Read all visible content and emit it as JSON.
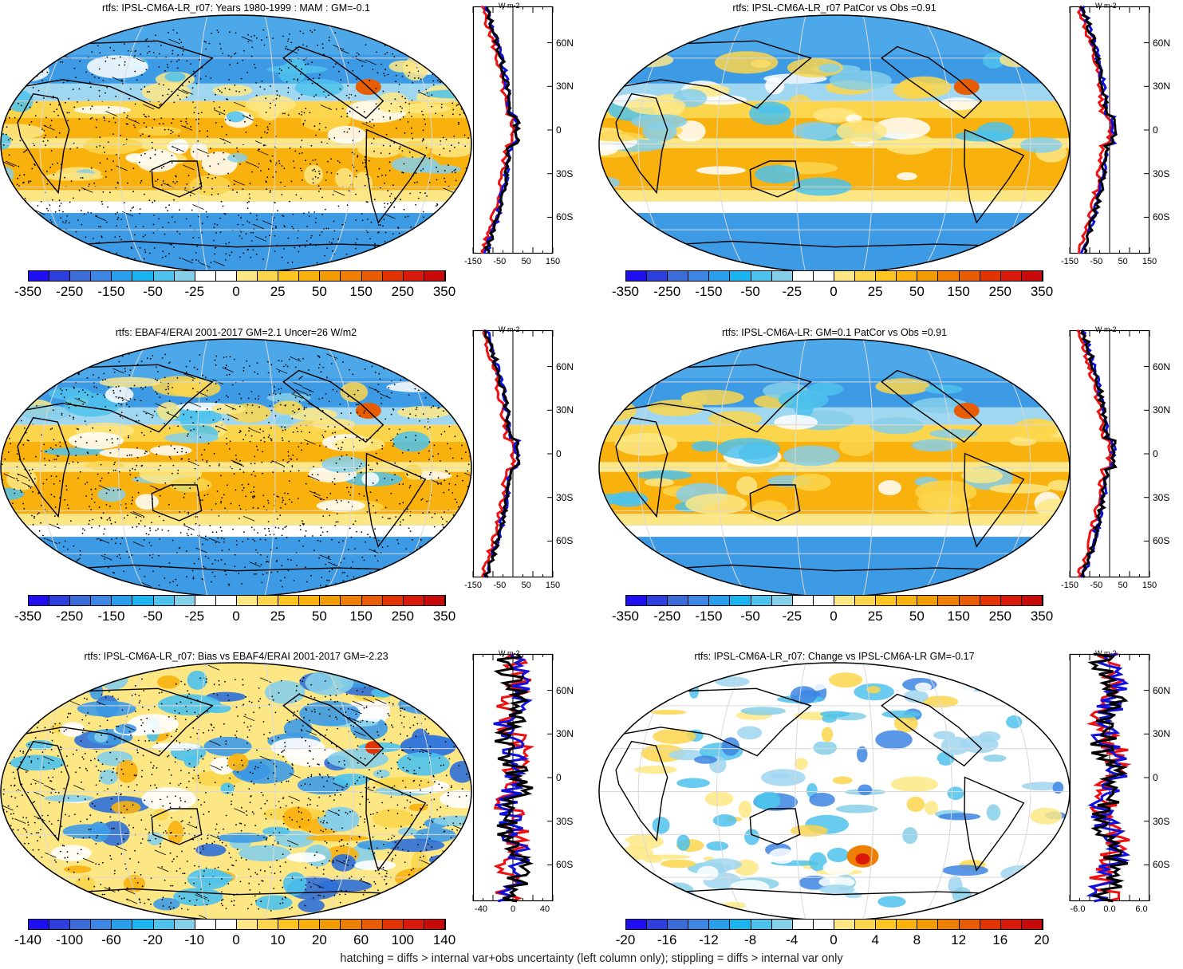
{
  "panels": [
    {
      "title": "rtfs: IPSL-CM6A-LR_r07: Years 1980-1999 : MAM : GM=-0.1",
      "field": "bright",
      "hatching": true,
      "colorbar_labels": [
        "-350",
        "-250",
        "-150",
        "-50",
        "-25",
        "0",
        "25",
        "50",
        "150",
        "250",
        "350"
      ],
      "profile_xticks": [
        "-150",
        "-50",
        "50",
        "150"
      ],
      "profile_xrange": [
        -150,
        150
      ],
      "profile_units": "W m-2",
      "profile_lat_labels": [
        "60N",
        "30N",
        "0",
        "30S",
        "60S"
      ]
    },
    {
      "title": "rtfs: IPSL-CM6A-LR_r07 PatCor vs Obs =0.91",
      "field": "bright",
      "hatching": false,
      "colorbar_labels": [
        "-350",
        "-250",
        "-150",
        "-50",
        "-25",
        "0",
        "25",
        "50",
        "150",
        "250",
        "350"
      ],
      "profile_xticks": [
        "-150",
        "-50",
        "50",
        "150"
      ],
      "profile_xrange": [
        -150,
        150
      ],
      "profile_units": "W m-2",
      "profile_lat_labels": [
        "60N",
        "30N",
        "0",
        "30S",
        "60S"
      ]
    },
    {
      "title": "rtfs: EBAF4/ERAI 2001-2017 GM=2.1 Uncer=26 W/m2",
      "field": "bright",
      "hatching": true,
      "colorbar_labels": [
        "-350",
        "-250",
        "-150",
        "-50",
        "-25",
        "0",
        "25",
        "50",
        "150",
        "250",
        "350"
      ],
      "profile_xticks": [
        "-150",
        "-50",
        "50",
        "150"
      ],
      "profile_xrange": [
        -150,
        150
      ],
      "profile_units": "W m-2",
      "profile_lat_labels": [
        "60N",
        "30N",
        "0",
        "30S",
        "60S"
      ]
    },
    {
      "title": "rtfs: IPSL-CM6A-LR: GM=0.1 PatCor vs Obs =0.91",
      "field": "bright",
      "hatching": false,
      "colorbar_labels": [
        "-350",
        "-250",
        "-150",
        "-50",
        "-25",
        "0",
        "25",
        "50",
        "150",
        "250",
        "350"
      ],
      "profile_xticks": [
        "-150",
        "-50",
        "50",
        "150"
      ],
      "profile_xrange": [
        -150,
        150
      ],
      "profile_units": "W m-2",
      "profile_lat_labels": [
        "60N",
        "30N",
        "0",
        "30S",
        "60S"
      ]
    },
    {
      "title": "rtfs: IPSL-CM6A-LR_r07: Bias vs EBAF4/ERAI 2001-2017 GM=-2.23",
      "field": "bias",
      "hatching": true,
      "colorbar_labels": [
        "-140",
        "-100",
        "-60",
        "-20",
        "-10",
        "0",
        "10",
        "20",
        "60",
        "100",
        "140"
      ],
      "profile_xticks": [
        "-40",
        "0",
        "40"
      ],
      "profile_xrange": [
        -50,
        50
      ],
      "profile_units": "W m-2",
      "profile_lat_labels": [
        "60N",
        "30N",
        "0",
        "30S",
        "60S"
      ]
    },
    {
      "title": "rtfs: IPSL-CM6A-LR_r07: Change vs IPSL-CM6A-LR GM=-0.17",
      "field": "change",
      "hatching": false,
      "colorbar_labels": [
        "-20",
        "-16",
        "-12",
        "-8",
        "-4",
        "0",
        "4",
        "8",
        "12",
        "16",
        "20"
      ],
      "profile_xticks": [
        "-6.0",
        "0.0",
        "6.0"
      ],
      "profile_xrange": [
        -7.5,
        7.5
      ],
      "profile_units": "W m-2",
      "profile_lat_labels": [
        "60N",
        "30N",
        "0",
        "30S",
        "60S"
      ]
    }
  ],
  "colorbar_colors": [
    "#1f0ff0",
    "#2d40dd",
    "#3c6cd8",
    "#3d86e3",
    "#2aa0ec",
    "#1bb4ef",
    "#4dc2ec",
    "#86cfe9",
    "#ffffff",
    "#ffffff",
    "#fde784",
    "#fbd64c",
    "#fcc521",
    "#f9b10e",
    "#f29c04",
    "#ee7f02",
    "#e85c03",
    "#e23303",
    "#d91a0b",
    "#c90a0a"
  ],
  "profile_colors": {
    "red": "#ee1111",
    "blue": "#1111dd",
    "black": "#000000"
  },
  "footer": "hatching = diffs > internal var+obs uncertainty (left column only); stippling = diffs > internal var only"
}
